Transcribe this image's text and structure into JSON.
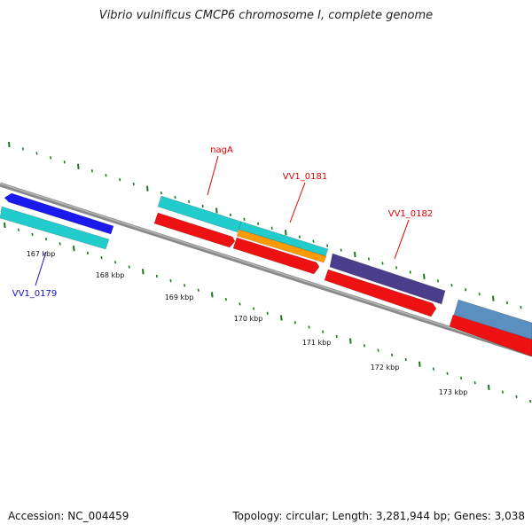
{
  "title": "Vibrio vulnificus CMCP6 chromosome I, complete genome",
  "footer": {
    "accession": "Accession: NC_004459",
    "topology": "Topology: circular; Length: 3,281,944 bp; Genes: 3,038"
  },
  "ticks": [
    "167 kbp",
    "168 kbp",
    "169 kbp",
    "170 kbp",
    "171 kbp",
    "172 kbp",
    "173 kbp"
  ],
  "gene_labels": [
    {
      "text": "nagA",
      "color": "#e00000"
    },
    {
      "text": "VV1_0181",
      "color": "#e00000"
    },
    {
      "text": "VV1_0182",
      "color": "#e00000"
    },
    {
      "text": "VV1_0179",
      "color": "#1010cc"
    }
  ],
  "colors": {
    "blue": "#1a1aee",
    "cyan": "#22cccc",
    "red": "#ee1111",
    "orange": "#ff9900",
    "purple": "#4a3d8c",
    "steel": "#5a8fc0",
    "backbone": "#8a8a8a",
    "tick": "#1a7a1a"
  }
}
